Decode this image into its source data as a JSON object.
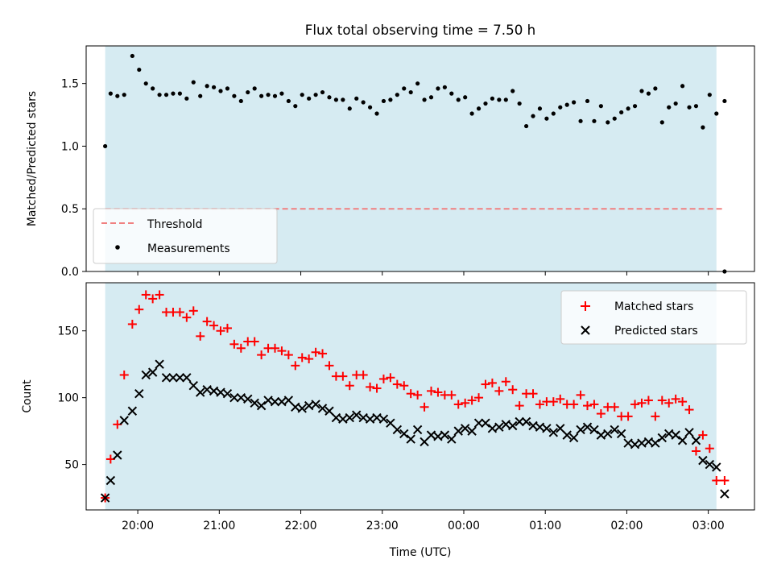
{
  "title": "Flux total observing time = 7.50 h",
  "chart_data": [
    {
      "type": "scatter",
      "panel": "top",
      "title": "Flux total observing time = 7.50 h",
      "xlabel": "",
      "ylabel": "Matched/Predicted stars",
      "xlim": [
        "19:22",
        "03:34"
      ],
      "ylim": [
        0,
        1.8
      ],
      "yticks": [
        0.0,
        0.5,
        1.0,
        1.5
      ],
      "ytick_labels": [
        "0.0",
        "0.5",
        "1.0",
        "1.5"
      ],
      "grid": false,
      "legend_placement": "lower-left",
      "shaded_interval": [
        "19:36",
        "03:06"
      ],
      "shade_color": "#add8e6",
      "threshold": {
        "name": "Threshold",
        "value": 0.5,
        "x_range": [
          "19:36",
          "03:12"
        ],
        "color": "#f08080",
        "style": "dashed"
      },
      "series": [
        {
          "name": "Measurements",
          "color": "#000000",
          "marker": "dot",
          "x": [
            "19:36",
            "19:40",
            "19:45",
            "19:50",
            "19:56",
            "20:01",
            "20:06",
            "20:11",
            "20:16",
            "20:21",
            "20:26",
            "20:31",
            "20:36",
            "20:41",
            "20:46",
            "20:51",
            "20:56",
            "21:01",
            "21:06",
            "21:11",
            "21:16",
            "21:21",
            "21:26",
            "21:31",
            "21:36",
            "21:41",
            "21:46",
            "21:51",
            "21:56",
            "22:01",
            "22:06",
            "22:11",
            "22:16",
            "22:21",
            "22:26",
            "22:31",
            "22:36",
            "22:41",
            "22:46",
            "22:51",
            "22:56",
            "23:01",
            "23:06",
            "23:11",
            "23:16",
            "23:21",
            "23:26",
            "23:31",
            "23:36",
            "23:41",
            "23:46",
            "23:51",
            "23:56",
            "00:01",
            "00:06",
            "00:11",
            "00:16",
            "00:21",
            "00:26",
            "00:31",
            "00:36",
            "00:41",
            "00:46",
            "00:51",
            "00:56",
            "01:01",
            "01:06",
            "01:11",
            "01:16",
            "01:21",
            "01:26",
            "01:31",
            "01:36",
            "01:41",
            "01:46",
            "01:51",
            "01:56",
            "02:01",
            "02:06",
            "02:11",
            "02:16",
            "02:21",
            "02:26",
            "02:31",
            "02:36",
            "02:41",
            "02:46",
            "02:51",
            "02:56",
            "03:01",
            "03:06",
            "03:12"
          ],
          "y": [
            1.0,
            1.42,
            1.4,
            1.41,
            1.72,
            1.61,
            1.5,
            1.46,
            1.41,
            1.41,
            1.42,
            1.42,
            1.38,
            1.51,
            1.4,
            1.48,
            1.47,
            1.44,
            1.46,
            1.4,
            1.36,
            1.43,
            1.46,
            1.4,
            1.41,
            1.4,
            1.42,
            1.36,
            1.32,
            1.41,
            1.38,
            1.41,
            1.43,
            1.39,
            1.37,
            1.37,
            1.3,
            1.38,
            1.35,
            1.31,
            1.26,
            1.36,
            1.37,
            1.41,
            1.46,
            1.43,
            1.5,
            1.37,
            1.39,
            1.46,
            1.47,
            1.42,
            1.37,
            1.39,
            1.26,
            1.3,
            1.34,
            1.38,
            1.37,
            1.37,
            1.44,
            1.34,
            1.16,
            1.24,
            1.3,
            1.22,
            1.26,
            1.31,
            1.33,
            1.35,
            1.2,
            1.36,
            1.2,
            1.32,
            1.19,
            1.22,
            1.27,
            1.3,
            1.32,
            1.44,
            1.42,
            1.46,
            1.19,
            1.31,
            1.34,
            1.48,
            1.31,
            1.32,
            1.15,
            1.41,
            1.26,
            1.36
          ]
        }
      ],
      "extra_points": [
        {
          "series": "Measurements",
          "x": "03:12",
          "y": 0.0
        }
      ]
    },
    {
      "type": "scatter",
      "panel": "bottom",
      "xlabel": "Time (UTC)",
      "ylabel": "Count",
      "xlim": [
        "19:22",
        "03:34"
      ],
      "ylim": [
        16,
        186
      ],
      "xticks": [
        "20:00",
        "21:00",
        "22:00",
        "23:00",
        "00:00",
        "01:00",
        "02:00",
        "03:00"
      ],
      "yticks": [
        50,
        100,
        150
      ],
      "ytick_labels": [
        "50",
        "100",
        "150"
      ],
      "grid": false,
      "legend_placement": "upper-right",
      "shaded_interval": [
        "19:36",
        "03:06"
      ],
      "shade_color": "#add8e6",
      "series": [
        {
          "name": "Matched stars",
          "color": "#ff0000",
          "marker": "plus",
          "x": [
            "19:36",
            "19:40",
            "19:45",
            "19:50",
            "19:56",
            "20:01",
            "20:06",
            "20:11",
            "20:16",
            "20:21",
            "20:26",
            "20:31",
            "20:36",
            "20:41",
            "20:46",
            "20:51",
            "20:56",
            "21:01",
            "21:06",
            "21:11",
            "21:16",
            "21:21",
            "21:26",
            "21:31",
            "21:36",
            "21:41",
            "21:46",
            "21:51",
            "21:56",
            "22:01",
            "22:06",
            "22:11",
            "22:16",
            "22:21",
            "22:26",
            "22:31",
            "22:36",
            "22:41",
            "22:46",
            "22:51",
            "22:56",
            "23:01",
            "23:06",
            "23:11",
            "23:16",
            "23:21",
            "23:26",
            "23:31",
            "23:36",
            "23:41",
            "23:46",
            "23:51",
            "23:56",
            "00:01",
            "00:06",
            "00:11",
            "00:16",
            "00:21",
            "00:26",
            "00:31",
            "00:36",
            "00:41",
            "00:46",
            "00:51",
            "00:56",
            "01:01",
            "01:06",
            "01:11",
            "01:16",
            "01:21",
            "01:26",
            "01:31",
            "01:36",
            "01:41",
            "01:46",
            "01:51",
            "01:56",
            "02:01",
            "02:06",
            "02:11",
            "02:16",
            "02:21",
            "02:26",
            "02:31",
            "02:36",
            "02:41",
            "02:46",
            "02:51",
            "02:56",
            "03:01",
            "03:06",
            "03:12"
          ],
          "y": [
            25,
            54,
            80,
            117,
            155,
            166,
            177,
            174,
            177,
            164,
            164,
            164,
            160,
            165,
            146,
            157,
            154,
            150,
            152,
            140,
            137,
            142,
            142,
            132,
            137,
            137,
            135,
            132,
            124,
            130,
            129,
            134,
            133,
            124,
            116,
            116,
            109,
            117,
            117,
            108,
            107,
            114,
            115,
            110,
            109,
            103,
            102,
            93,
            105,
            104,
            102,
            102,
            95,
            96,
            98,
            100,
            110,
            111,
            105,
            112,
            106,
            94,
            103,
            103,
            95,
            97,
            97,
            99,
            95,
            95,
            102,
            94,
            95,
            88,
            93,
            93,
            86,
            86,
            95,
            96,
            98,
            86,
            98,
            96,
            99,
            97,
            91,
            60,
            72,
            62,
            38,
            38
          ]
        },
        {
          "name": "Predicted stars",
          "color": "#000000",
          "marker": "x",
          "x": [
            "19:36",
            "19:40",
            "19:45",
            "19:50",
            "19:56",
            "20:01",
            "20:06",
            "20:11",
            "20:16",
            "20:21",
            "20:26",
            "20:31",
            "20:36",
            "20:41",
            "20:46",
            "20:51",
            "20:56",
            "21:01",
            "21:06",
            "21:11",
            "21:16",
            "21:21",
            "21:26",
            "21:31",
            "21:36",
            "21:41",
            "21:46",
            "21:51",
            "21:56",
            "22:01",
            "22:06",
            "22:11",
            "22:16",
            "22:21",
            "22:26",
            "22:31",
            "22:36",
            "22:41",
            "22:46",
            "22:51",
            "22:56",
            "23:01",
            "23:06",
            "23:11",
            "23:16",
            "23:21",
            "23:26",
            "23:31",
            "23:36",
            "23:41",
            "23:46",
            "23:51",
            "23:56",
            "00:01",
            "00:06",
            "00:11",
            "00:16",
            "00:21",
            "00:26",
            "00:31",
            "00:36",
            "00:41",
            "00:46",
            "00:51",
            "00:56",
            "01:01",
            "01:06",
            "01:11",
            "01:16",
            "01:21",
            "01:26",
            "01:31",
            "01:36",
            "01:41",
            "01:46",
            "01:51",
            "01:56",
            "02:01",
            "02:06",
            "02:11",
            "02:16",
            "02:21",
            "02:26",
            "02:31",
            "02:36",
            "02:41",
            "02:46",
            "02:51",
            "02:56",
            "03:01",
            "03:06"
          ],
          "y": [
            25,
            38,
            57,
            83,
            90,
            103,
            117,
            119,
            125,
            115,
            115,
            115,
            115,
            109,
            104,
            106,
            105,
            104,
            103,
            100,
            100,
            99,
            96,
            94,
            98,
            97,
            97,
            98,
            93,
            92,
            94,
            95,
            92,
            90,
            85,
            84,
            85,
            87,
            85,
            84,
            85,
            84,
            81,
            76,
            73,
            69,
            76,
            67,
            72,
            71,
            72,
            69,
            75,
            77,
            75,
            81,
            81,
            77,
            78,
            80,
            79,
            82,
            82,
            79,
            78,
            77,
            74,
            77,
            72,
            70,
            76,
            78,
            76,
            72,
            73,
            76,
            73,
            66,
            65,
            66,
            67,
            66,
            70,
            73,
            72,
            68,
            74,
            68,
            53,
            50,
            48
          ]
        }
      ],
      "extra_points": [
        {
          "series": "Predicted stars",
          "x": "03:12",
          "y": 28
        }
      ]
    }
  ]
}
